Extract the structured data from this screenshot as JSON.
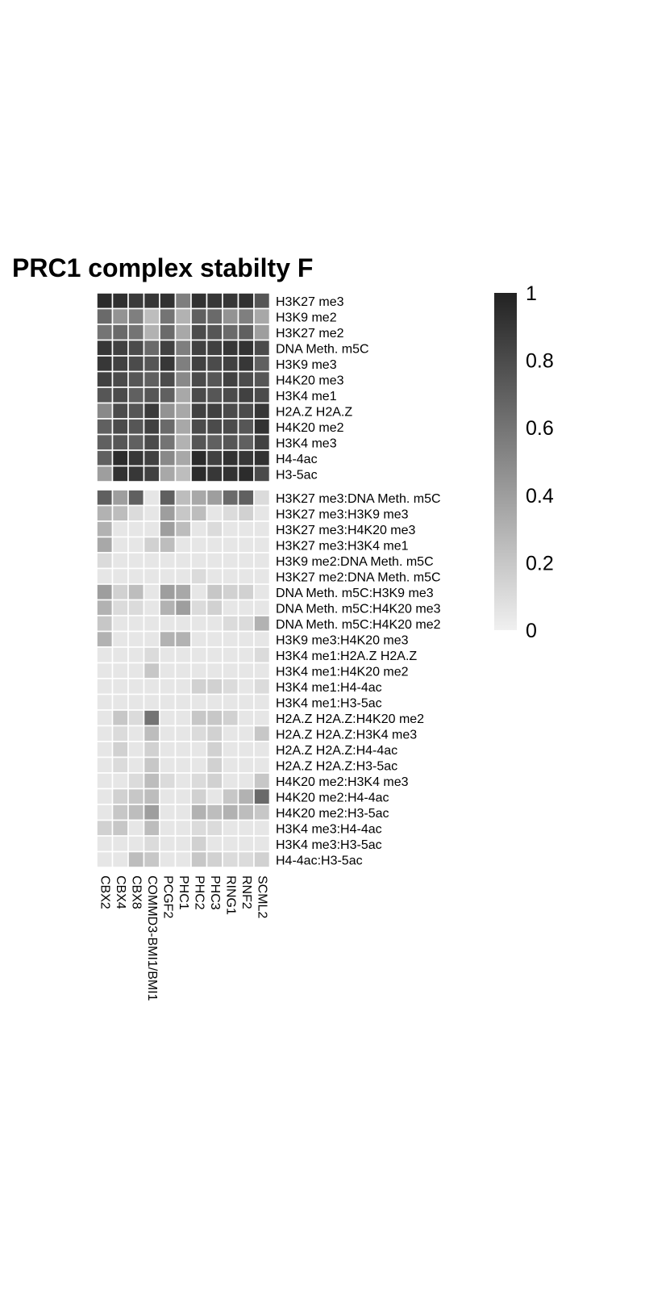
{
  "chart_data": {
    "type": "heatmap",
    "title": "PRC1 complex stabilty F",
    "columns": [
      "CBX2",
      "CBX4",
      "CBX8",
      "COMMD3-BMI1/BMI1",
      "PCGF2",
      "PHC1",
      "PHC2",
      "PHC3",
      "RING1",
      "RNF2",
      "SCML2"
    ],
    "row_groups": [
      {
        "rows": [
          "H3K27 me3",
          "H3K9 me2",
          "H3K27 me2",
          "DNA Meth. m5C",
          "H3K9 me3",
          "H4K20 me3",
          "H3K4 me1",
          "H2A.Z H2A.Z",
          "H4K20 me2",
          "H3K4 me3",
          "H4-4ac",
          "H3-5ac"
        ],
        "values": [
          [
            0.95,
            0.93,
            0.88,
            0.9,
            0.92,
            0.55,
            0.92,
            0.9,
            0.9,
            0.92,
            0.75
          ],
          [
            0.65,
            0.45,
            0.55,
            0.25,
            0.6,
            0.3,
            0.7,
            0.65,
            0.45,
            0.55,
            0.35
          ],
          [
            0.6,
            0.65,
            0.6,
            0.3,
            0.65,
            0.35,
            0.8,
            0.75,
            0.65,
            0.7,
            0.4
          ],
          [
            0.9,
            0.85,
            0.8,
            0.65,
            0.85,
            0.55,
            0.85,
            0.85,
            0.9,
            0.92,
            0.8
          ],
          [
            0.9,
            0.85,
            0.8,
            0.75,
            0.9,
            0.55,
            0.85,
            0.8,
            0.85,
            0.9,
            0.7
          ],
          [
            0.85,
            0.8,
            0.75,
            0.7,
            0.8,
            0.5,
            0.8,
            0.75,
            0.85,
            0.8,
            0.75
          ],
          [
            0.75,
            0.8,
            0.7,
            0.75,
            0.7,
            0.35,
            0.8,
            0.75,
            0.8,
            0.85,
            0.8
          ],
          [
            0.5,
            0.8,
            0.75,
            0.88,
            0.45,
            0.35,
            0.85,
            0.85,
            0.8,
            0.8,
            0.9
          ],
          [
            0.7,
            0.8,
            0.75,
            0.85,
            0.65,
            0.35,
            0.8,
            0.8,
            0.8,
            0.75,
            0.92
          ],
          [
            0.7,
            0.75,
            0.7,
            0.8,
            0.6,
            0.3,
            0.75,
            0.7,
            0.75,
            0.7,
            0.85
          ],
          [
            0.7,
            0.95,
            0.9,
            0.85,
            0.5,
            0.35,
            0.95,
            0.85,
            0.92,
            0.9,
            0.92
          ],
          [
            0.4,
            0.92,
            0.9,
            0.85,
            0.35,
            0.25,
            0.95,
            0.9,
            0.92,
            0.95,
            0.8
          ]
        ]
      },
      {
        "rows": [
          "H3K27 me3:DNA Meth. m5C",
          "H3K27 me3:H3K9 me3",
          "H3K27 me3:H4K20 me3",
          "H3K27 me3:H3K4 me1",
          "H3K9 me2:DNA Meth. m5C",
          "H3K27 me2:DNA Meth. m5C",
          "DNA Meth. m5C:H3K9 me3",
          "DNA Meth. m5C:H4K20 me3",
          "DNA Meth. m5C:H4K20 me2",
          "H3K9 me3:H4K20 me3",
          "H3K4 me1:H2A.Z H2A.Z",
          "H3K4 me1:H4K20 me2",
          "H3K4 me1:H4-4ac",
          "H3K4 me1:H3-5ac",
          "H2A.Z H2A.Z:H4K20 me2",
          "H2A.Z H2A.Z:H3K4 me3",
          "H2A.Z H2A.Z:H4-4ac",
          "H2A.Z H2A.Z:H3-5ac",
          "H4K20 me2:H3K4 me3",
          "H4K20 me2:H4-4ac",
          "H4K20 me2:H3-5ac",
          "H3K4 me3:H4-4ac",
          "H3K4 me3:H3-5ac",
          "H4-4ac:H3-5ac"
        ],
        "values": [
          [
            0.7,
            0.4,
            0.7,
            0.05,
            0.7,
            0.25,
            0.35,
            0.4,
            0.65,
            0.7,
            0.1
          ],
          [
            0.3,
            0.25,
            0.1,
            0.05,
            0.4,
            0.2,
            0.25,
            0.05,
            0.1,
            0.15,
            0.05
          ],
          [
            0.3,
            0.05,
            0.05,
            0.05,
            0.4,
            0.25,
            0.05,
            0.1,
            0.05,
            0.05,
            0.05
          ],
          [
            0.35,
            0.05,
            0.05,
            0.15,
            0.25,
            0.05,
            0.05,
            0.05,
            0.05,
            0.05,
            0.05
          ],
          [
            0.1,
            0.05,
            0.05,
            0.05,
            0.05,
            0.05,
            0.05,
            0.05,
            0.05,
            0.05,
            0.05
          ],
          [
            0.05,
            0.05,
            0.05,
            0.05,
            0.05,
            0.05,
            0.1,
            0.05,
            0.05,
            0.05,
            0.05
          ],
          [
            0.4,
            0.15,
            0.25,
            0.05,
            0.4,
            0.35,
            0.05,
            0.2,
            0.15,
            0.15,
            0.05
          ],
          [
            0.3,
            0.1,
            0.1,
            0.05,
            0.3,
            0.4,
            0.1,
            0.15,
            0.05,
            0.05,
            0.05
          ],
          [
            0.2,
            0.05,
            0.05,
            0.05,
            0.05,
            0.05,
            0.05,
            0.05,
            0.1,
            0.1,
            0.3
          ],
          [
            0.3,
            0.05,
            0.05,
            0.05,
            0.3,
            0.3,
            0.05,
            0.05,
            0.05,
            0.05,
            0.05
          ],
          [
            0.05,
            0.05,
            0.05,
            0.1,
            0.05,
            0.05,
            0.05,
            0.05,
            0.05,
            0.05,
            0.1
          ],
          [
            0.05,
            0.05,
            0.05,
            0.2,
            0.05,
            0.05,
            0.05,
            0.05,
            0.05,
            0.05,
            0.05
          ],
          [
            0.05,
            0.05,
            0.05,
            0.05,
            0.05,
            0.05,
            0.15,
            0.15,
            0.1,
            0.05,
            0.1
          ],
          [
            0.05,
            0.05,
            0.05,
            0.05,
            0.05,
            0.05,
            0.05,
            0.05,
            0.05,
            0.05,
            0.05
          ],
          [
            0.05,
            0.2,
            0.1,
            0.6,
            0.05,
            0.05,
            0.2,
            0.2,
            0.15,
            0.05,
            0.05
          ],
          [
            0.05,
            0.1,
            0.05,
            0.25,
            0.05,
            0.05,
            0.1,
            0.15,
            0.05,
            0.05,
            0.2
          ],
          [
            0.05,
            0.15,
            0.05,
            0.15,
            0.05,
            0.05,
            0.05,
            0.15,
            0.05,
            0.05,
            0.05
          ],
          [
            0.05,
            0.1,
            0.05,
            0.2,
            0.05,
            0.05,
            0.05,
            0.15,
            0.05,
            0.05,
            0.05
          ],
          [
            0.05,
            0.05,
            0.1,
            0.25,
            0.1,
            0.05,
            0.1,
            0.15,
            0.05,
            0.05,
            0.2
          ],
          [
            0.05,
            0.15,
            0.2,
            0.25,
            0.05,
            0.05,
            0.15,
            0.05,
            0.2,
            0.3,
            0.65
          ],
          [
            0.05,
            0.2,
            0.25,
            0.4,
            0.05,
            0.05,
            0.3,
            0.25,
            0.3,
            0.25,
            0.2
          ],
          [
            0.15,
            0.2,
            0.05,
            0.25,
            0.05,
            0.05,
            0.1,
            0.1,
            0.05,
            0.05,
            0.05
          ],
          [
            0.05,
            0.05,
            0.05,
            0.1,
            0.05,
            0.05,
            0.15,
            0.05,
            0.05,
            0.05,
            0.05
          ],
          [
            0.05,
            0.05,
            0.25,
            0.2,
            0.05,
            0.05,
            0.2,
            0.15,
            0.1,
            0.1,
            0.15
          ]
        ]
      }
    ],
    "color_scale": {
      "min": 0,
      "max": 1,
      "low_color": "#f0f0f0",
      "high_color": "#222222",
      "ticks": [
        "0",
        "0.2",
        "0.4",
        "0.6",
        "0.8",
        "1"
      ]
    }
  }
}
